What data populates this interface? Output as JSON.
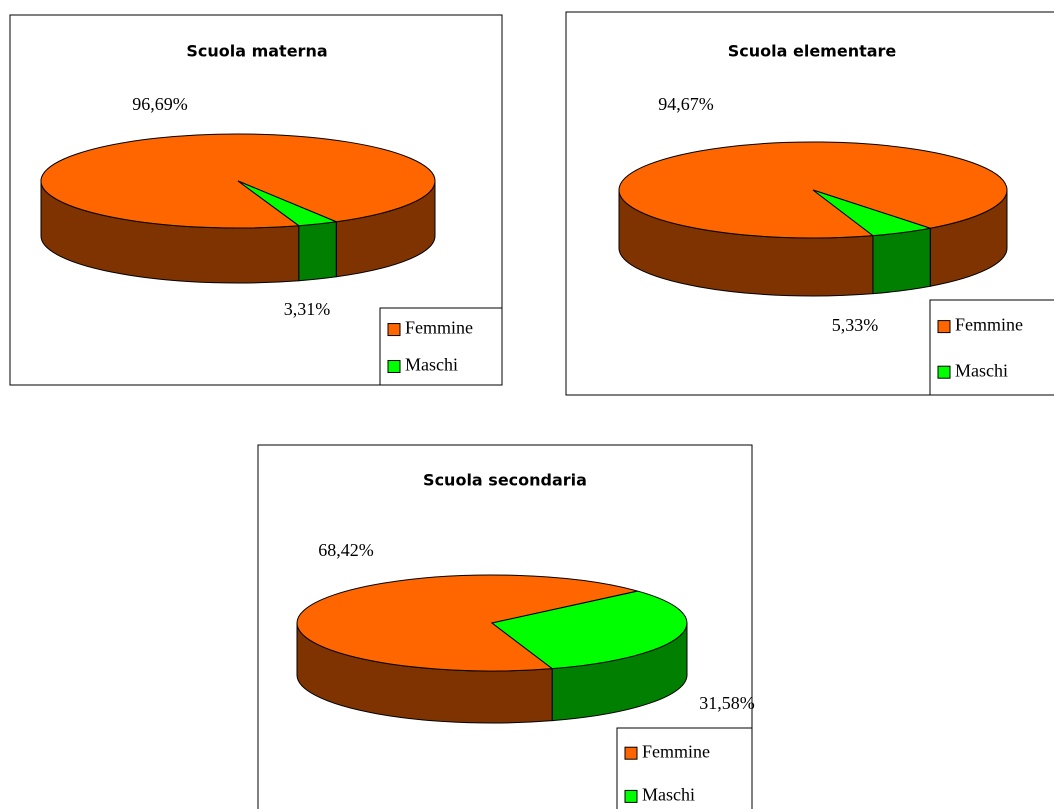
{
  "chart_data": [
    {
      "type": "pie",
      "title": "Scuola materna",
      "categories": [
        "Femmine",
        "Maschi"
      ],
      "values": [
        96.69,
        3.31
      ],
      "value_labels": [
        "96,69%",
        "3,31%"
      ],
      "colors": [
        "#ff6600",
        "#00ff00"
      ]
    },
    {
      "type": "pie",
      "title": "Scuola elementare",
      "categories": [
        "Femmine",
        "Maschi"
      ],
      "values": [
        94.67,
        5.33
      ],
      "value_labels": [
        "94,67%",
        "5,33%"
      ],
      "colors": [
        "#ff6600",
        "#00ff00"
      ]
    },
    {
      "type": "pie",
      "title": "Scuola secondaria",
      "categories": [
        "Femmine",
        "Maschi"
      ],
      "values": [
        68.42,
        31.58
      ],
      "value_labels": [
        "68,42%",
        "31,58%"
      ],
      "colors": [
        "#ff6600",
        "#00ff00"
      ]
    }
  ]
}
